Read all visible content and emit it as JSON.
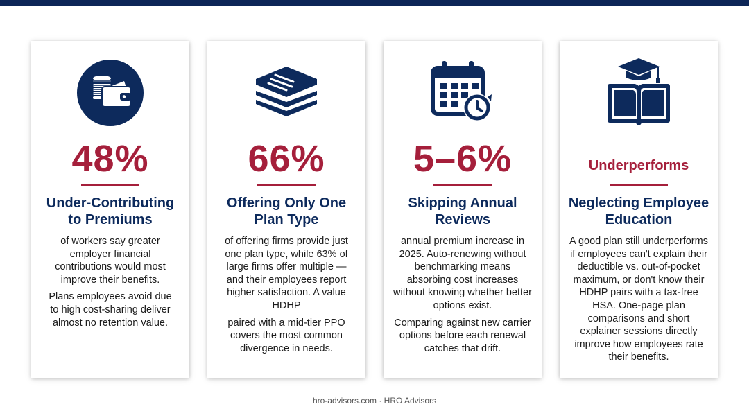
{
  "cards": [
    {
      "icon": "coins-wallet-icon",
      "stat": "48%",
      "title": "Under-Contributing to Premiums",
      "body": [
        "of workers say greater employer financial contributions would most improve their benefits.",
        "Plans employees avoid due to high cost-sharing deliver almost no retention value."
      ]
    },
    {
      "icon": "stacked-documents-icon",
      "stat": "66%",
      "title": "Offering Only One Plan Type",
      "body": [
        "of offering firms provide just one plan type, while 63% of large firms offer multiple — and their employees report higher satisfaction. A value HDHP",
        "paired with a mid-tier PPO covers the most common divergence in needs."
      ]
    },
    {
      "icon": "calendar-clock-icon",
      "stat": "5–6%",
      "title": "Skipping Annual Reviews",
      "body": [
        "annual premium increase in 2025. Auto-renewing without benchmarking means absorbing cost increases without knowing whether better options exist.",
        "Comparing against new carrier options before each renewal catches that drift."
      ]
    },
    {
      "icon": "graduation-book-icon",
      "stat": "Underperforms",
      "title": "Neglecting Employee Education",
      "body": [
        "A good plan still underperforms if employees can't explain their deductible vs. out-of-pocket maximum, or don't know their HDHP pairs with a tax-free HSA. One-page plan comparisons and short explainer sessions directly improve how employees rate their benefits."
      ]
    }
  ],
  "footer": "hro-advisors.com · HRO Advisors",
  "colors": {
    "navy": "#0d2a5c",
    "accent": "#a51f3b"
  }
}
